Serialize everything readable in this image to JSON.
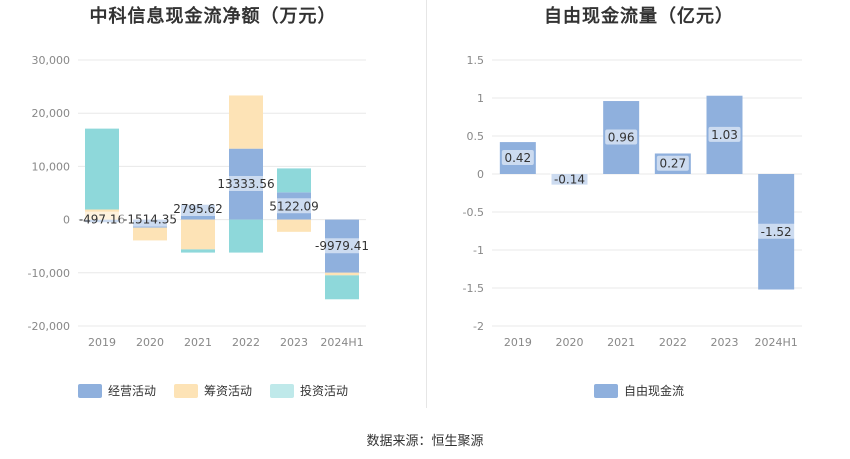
{
  "chart_data": [
    {
      "type": "bar",
      "stacked": true,
      "title": "中科信息现金流净额（万元）",
      "categories": [
        "2019",
        "2020",
        "2021",
        "2022",
        "2023",
        "2024H1"
      ],
      "ylim": [
        -20000,
        30000
      ],
      "yticks": [
        -20000,
        -10000,
        0,
        10000,
        20000,
        30000
      ],
      "ytick_labels": [
        "-20,000",
        "-10,000",
        "0",
        "10,000",
        "20,000",
        "30,000"
      ],
      "grid": true,
      "legend_position": "bottom",
      "series": [
        {
          "name": "经营活动",
          "color": "#8fb0dd",
          "values": [
            -497.16,
            -1514.35,
            2795.62,
            13333.56,
            5122.09,
            -9979.41
          ]
        },
        {
          "name": "筹资活动",
          "color": "#fde3b6",
          "values": [
            1900,
            -2400,
            -5600,
            10000,
            -2300,
            -500
          ]
        },
        {
          "name": "投资活动",
          "color": "#8ed8da",
          "values": [
            15200,
            0,
            -600,
            -6200,
            4500,
            -4500
          ]
        }
      ],
      "data_labels": [
        "-497.16",
        "-1514.35",
        "2795.62",
        "13333.56",
        "5122.09",
        "-9979.41"
      ]
    },
    {
      "type": "bar",
      "title": "自由现金流量（亿元）",
      "categories": [
        "2019",
        "2020",
        "2021",
        "2022",
        "2023",
        "2024H1"
      ],
      "ylim": [
        -2,
        1.5
      ],
      "yticks": [
        -2,
        -1.5,
        -1,
        -0.5,
        0,
        0.5,
        1,
        1.5
      ],
      "ytick_labels": [
        "-2",
        "-1.5",
        "-1",
        "-0.5",
        "0",
        "0.5",
        "1",
        "1.5"
      ],
      "grid": true,
      "legend_position": "bottom",
      "series": [
        {
          "name": "自由现金流",
          "color": "#8fb0dd",
          "values": [
            0.42,
            -0.14,
            0.96,
            0.27,
            1.03,
            -1.52
          ]
        }
      ],
      "data_labels": [
        "0.42",
        "-0.14",
        "0.96",
        "0.27",
        "1.03",
        "-1.52"
      ]
    }
  ],
  "footer": {
    "source": "数据来源：恒生聚源"
  }
}
